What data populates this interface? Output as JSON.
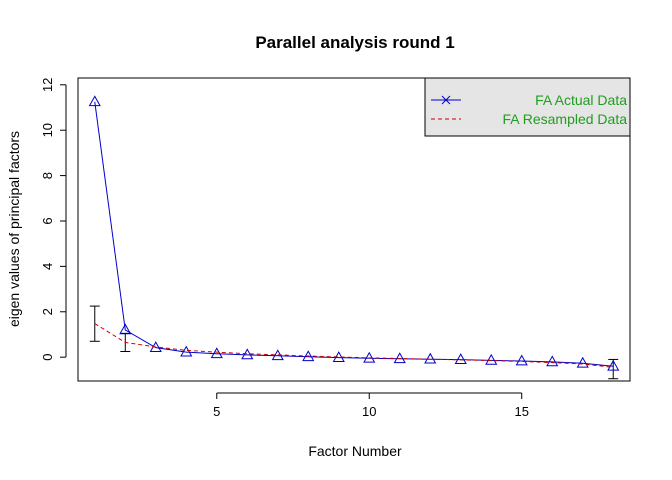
{
  "chart_data": {
    "type": "line",
    "title": "Parallel analysis round 1",
    "xlabel": "Factor Number",
    "ylabel": "eigen values of principal factors",
    "xlim": [
      0.45,
      18.55
    ],
    "ylim": [
      -1.05,
      12.3
    ],
    "xticks": [
      5,
      10,
      15
    ],
    "yticks": [
      0,
      2,
      4,
      6,
      8,
      10,
      12
    ],
    "grid": false,
    "legend_position": "top-right",
    "series": [
      {
        "name": "FA  Actual Data",
        "color": "#0000cc",
        "line_style": "solid",
        "marker": "triangle",
        "x": [
          1,
          2,
          3,
          4,
          5,
          6,
          7,
          8,
          9,
          10,
          11,
          12,
          13,
          14,
          15,
          16,
          17,
          18
        ],
        "values": [
          11.25,
          1.2,
          0.42,
          0.22,
          0.15,
          0.1,
          0.06,
          0.02,
          -0.02,
          -0.05,
          -0.07,
          -0.09,
          -0.11,
          -0.14,
          -0.17,
          -0.21,
          -0.27,
          -0.4
        ]
      },
      {
        "name": "FA  Resampled Data",
        "color": "#cc0000",
        "line_style": "dashed",
        "x": [
          1,
          2,
          3,
          4,
          5,
          6,
          7,
          8,
          9,
          10,
          11,
          12,
          13,
          14,
          15,
          16,
          17,
          18
        ],
        "values": [
          1.48,
          0.65,
          0.45,
          0.3,
          0.22,
          0.15,
          0.1,
          0.05,
          0.01,
          -0.03,
          -0.06,
          -0.09,
          -0.12,
          -0.15,
          -0.19,
          -0.24,
          -0.3,
          -0.45
        ]
      }
    ],
    "error_bars": [
      {
        "x": 1,
        "low": 0.7,
        "high": 2.25
      },
      {
        "x": 2,
        "low": 0.25,
        "high": 1.05
      },
      {
        "x": 18,
        "low": -0.95,
        "high": -0.1
      }
    ]
  }
}
